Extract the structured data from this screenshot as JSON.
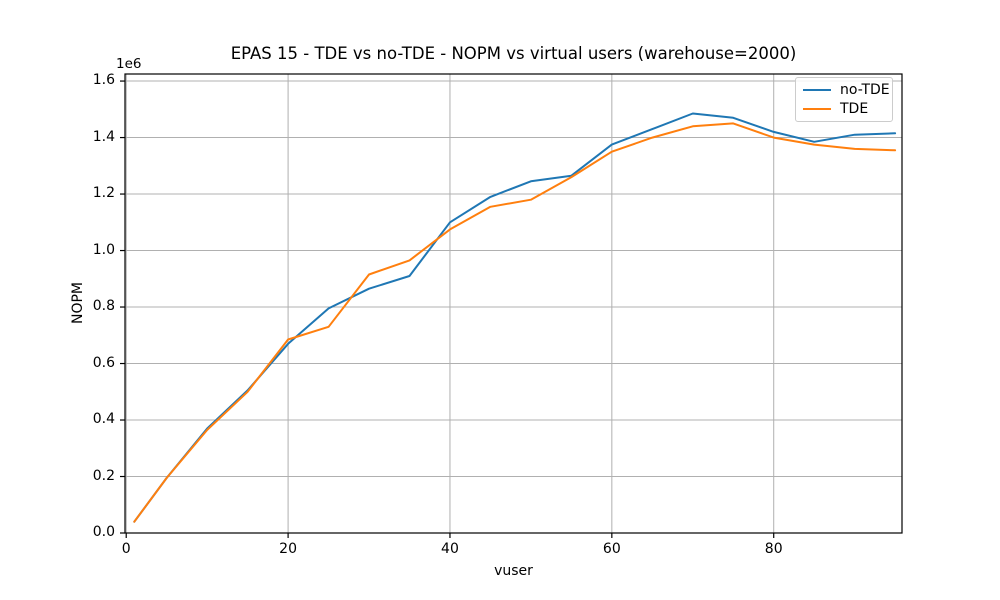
{
  "chart_data": {
    "type": "line",
    "title": "EPAS 15 - TDE vs no-TDE - NOPM vs virtual users (warehouse=2000)",
    "xlabel": "vuser",
    "ylabel": "NOPM",
    "y_offset_text": "1e6",
    "x": [
      1,
      5,
      10,
      15,
      20,
      25,
      30,
      35,
      40,
      45,
      50,
      55,
      60,
      65,
      70,
      75,
      80,
      85,
      90,
      95
    ],
    "series": [
      {
        "name": "no-TDE",
        "color": "#1f77b4",
        "values": [
          40000,
          195000,
          370000,
          505000,
          670000,
          795000,
          865000,
          910000,
          1100000,
          1190000,
          1245000,
          1265000,
          1375000,
          1430000,
          1485000,
          1470000,
          1420000,
          1385000,
          1410000,
          1415000
        ]
      },
      {
        "name": "TDE",
        "color": "#ff7f0e",
        "values": [
          40000,
          195000,
          365000,
          500000,
          685000,
          730000,
          915000,
          965000,
          1075000,
          1155000,
          1180000,
          1260000,
          1350000,
          1400000,
          1440000,
          1450000,
          1400000,
          1375000,
          1360000,
          1355000
        ]
      }
    ],
    "xticks": [
      0,
      20,
      40,
      60,
      80
    ],
    "ytick_labels": [
      "0.0",
      "0.2",
      "0.4",
      "0.6",
      "0.8",
      "1.0",
      "1.2",
      "1.4",
      "1.6"
    ],
    "xlim": [
      -0.15,
      95.85
    ],
    "ylim": [
      0,
      1625000
    ],
    "grid": true,
    "grid_color": "#b0b0b0",
    "spine_color": "#000000",
    "background_color": "#ffffff",
    "legend_position": "upper right"
  }
}
